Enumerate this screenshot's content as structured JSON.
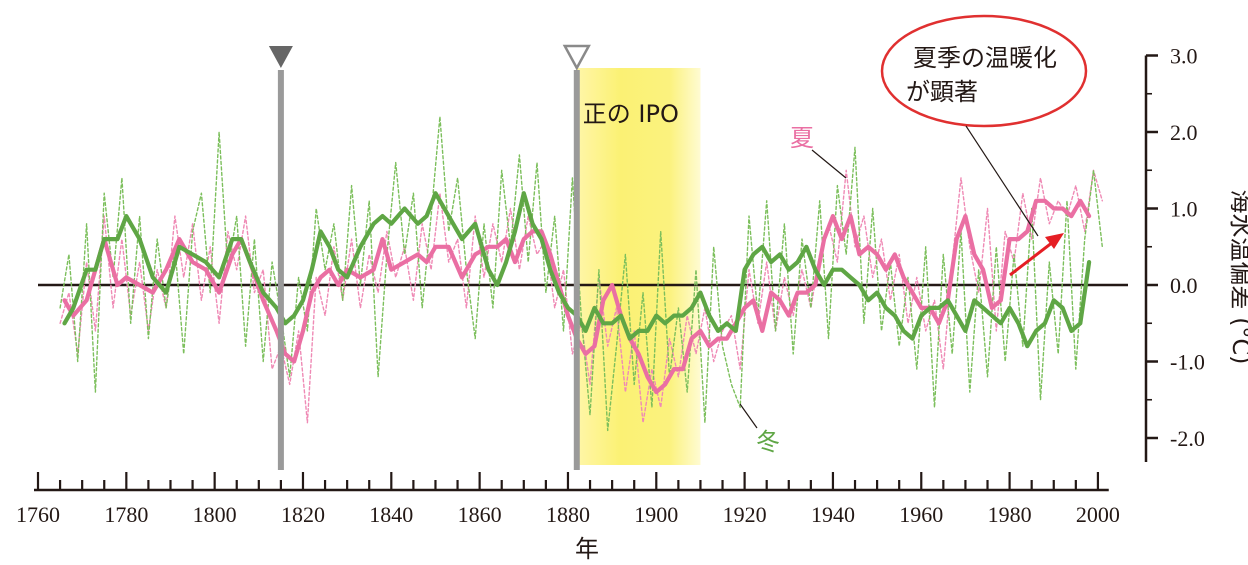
{
  "chart_data": {
    "type": "line",
    "title": "",
    "xlabel": "年",
    "ylabel": "海水温偏差 (°C)",
    "xlim": [
      1760,
      2005
    ],
    "ylim": [
      -2.3,
      3.0
    ],
    "x_ticks": [
      1760,
      1780,
      1800,
      1820,
      1840,
      1860,
      1880,
      1900,
      1920,
      1940,
      1960,
      1980,
      2000
    ],
    "y_ticks": [
      {
        "value": 3.0,
        "label": "3.0"
      },
      {
        "value": 2.0,
        "label": "2.0"
      },
      {
        "value": 1.0,
        "label": "1.0"
      },
      {
        "value": 0.0,
        "label": "0.0"
      },
      {
        "value": -1.0,
        "label": "-1.0"
      },
      {
        "value": -2.0,
        "label": "-2.0"
      }
    ],
    "markers": [
      {
        "x": 1815,
        "style": "filled-triangle"
      },
      {
        "x": 1882,
        "style": "open-triangle"
      }
    ],
    "shaded_period": {
      "label": "正の IPO",
      "x_start": 1882,
      "x_end": 1910
    },
    "annotations": {
      "summer": "夏",
      "winter": "冬",
      "callout_line1": "夏季の温暖化",
      "callout_line2": "が顕著"
    },
    "series": [
      {
        "name": "夏",
        "style": "smoothed",
        "color": "#ea6fa3",
        "x": [
          1766,
          1768,
          1771,
          1773,
          1775,
          1778,
          1780,
          1783,
          1786,
          1789,
          1792,
          1795,
          1798,
          1801,
          1804,
          1806,
          1808,
          1811,
          1814,
          1816,
          1818,
          1820,
          1822,
          1824,
          1826,
          1828,
          1830,
          1833,
          1836,
          1838,
          1840,
          1843,
          1846,
          1848,
          1850,
          1853,
          1856,
          1859,
          1862,
          1864,
          1866,
          1868,
          1870,
          1872,
          1874,
          1876,
          1878,
          1880,
          1882,
          1884,
          1886,
          1888,
          1890,
          1892,
          1894,
          1896,
          1898,
          1900,
          1902,
          1904,
          1906,
          1908,
          1910,
          1912,
          1914,
          1916,
          1918,
          1920,
          1922,
          1924,
          1926,
          1928,
          1930,
          1932,
          1934,
          1936,
          1938,
          1940,
          1942,
          1944,
          1946,
          1948,
          1950,
          1952,
          1954,
          1956,
          1958,
          1960,
          1962,
          1964,
          1966,
          1968,
          1970,
          1972,
          1974,
          1976,
          1978,
          1980,
          1982,
          1984,
          1986,
          1988,
          1990,
          1992,
          1994,
          1996,
          1998
        ],
        "y": [
          -0.2,
          -0.4,
          -0.2,
          0.2,
          0.6,
          0.0,
          0.1,
          0.0,
          -0.1,
          0.2,
          0.6,
          0.3,
          0.2,
          -0.1,
          0.4,
          0.6,
          0.3,
          -0.2,
          -0.6,
          -0.9,
          -1.0,
          -0.6,
          -0.1,
          0.1,
          0.2,
          0.0,
          0.2,
          0.1,
          0.2,
          0.6,
          0.2,
          0.3,
          0.4,
          0.3,
          0.5,
          0.5,
          0.1,
          0.4,
          0.5,
          0.5,
          0.6,
          0.3,
          0.6,
          0.7,
          0.7,
          0.4,
          0.0,
          -0.4,
          -0.7,
          -0.9,
          -0.8,
          -0.2,
          0.0,
          -0.4,
          -0.7,
          -0.9,
          -1.2,
          -1.4,
          -1.3,
          -1.1,
          -1.1,
          -0.7,
          -0.6,
          -0.8,
          -0.7,
          -0.7,
          -0.5,
          -0.3,
          -0.2,
          -0.6,
          -0.1,
          -0.2,
          -0.4,
          -0.1,
          -0.1,
          0.0,
          0.6,
          0.9,
          0.6,
          0.9,
          0.4,
          0.5,
          0.4,
          0.2,
          0.4,
          0.1,
          -0.1,
          -0.3,
          -0.3,
          -0.5,
          -0.2,
          0.6,
          0.9,
          0.4,
          0.2,
          -0.3,
          -0.2,
          0.6,
          0.6,
          0.7,
          1.1,
          1.1,
          1.0,
          1.0,
          0.9,
          1.1,
          0.9
        ]
      },
      {
        "name": "冬",
        "style": "smoothed",
        "color": "#5fa645",
        "x": [
          1766,
          1768,
          1771,
          1773,
          1775,
          1778,
          1780,
          1783,
          1786,
          1789,
          1792,
          1795,
          1798,
          1801,
          1804,
          1806,
          1808,
          1811,
          1814,
          1816,
          1818,
          1820,
          1822,
          1824,
          1826,
          1828,
          1830,
          1833,
          1836,
          1838,
          1840,
          1843,
          1846,
          1848,
          1850,
          1853,
          1856,
          1859,
          1862,
          1864,
          1866,
          1868,
          1870,
          1872,
          1874,
          1876,
          1878,
          1880,
          1882,
          1884,
          1886,
          1888,
          1890,
          1892,
          1894,
          1896,
          1898,
          1900,
          1902,
          1904,
          1906,
          1908,
          1910,
          1912,
          1914,
          1916,
          1918,
          1920,
          1922,
          1924,
          1926,
          1928,
          1930,
          1932,
          1934,
          1936,
          1938,
          1940,
          1942,
          1944,
          1946,
          1948,
          1950,
          1952,
          1954,
          1956,
          1958,
          1960,
          1962,
          1964,
          1966,
          1968,
          1970,
          1972,
          1974,
          1976,
          1978,
          1980,
          1982,
          1984,
          1986,
          1988,
          1990,
          1992,
          1994,
          1996,
          1998
        ],
        "y": [
          -0.5,
          -0.3,
          0.2,
          0.2,
          0.6,
          0.6,
          0.9,
          0.6,
          0.1,
          -0.1,
          0.5,
          0.4,
          0.3,
          0.1,
          0.6,
          0.6,
          0.3,
          -0.1,
          -0.3,
          -0.5,
          -0.4,
          -0.2,
          0.2,
          0.7,
          0.5,
          0.2,
          0.1,
          0.5,
          0.8,
          0.9,
          0.8,
          1.0,
          0.8,
          0.9,
          1.2,
          0.9,
          0.6,
          0.8,
          0.2,
          0.0,
          0.3,
          0.7,
          1.2,
          0.8,
          0.6,
          0.2,
          -0.1,
          -0.3,
          -0.4,
          -0.6,
          -0.3,
          -0.5,
          -0.5,
          -0.4,
          -0.7,
          -0.6,
          -0.6,
          -0.4,
          -0.5,
          -0.4,
          -0.4,
          -0.3,
          -0.1,
          -0.4,
          -0.6,
          -0.5,
          -0.6,
          0.2,
          0.4,
          0.5,
          0.3,
          0.4,
          0.2,
          0.3,
          0.5,
          0.2,
          0.0,
          0.2,
          0.2,
          0.1,
          0.0,
          -0.2,
          -0.1,
          -0.3,
          -0.4,
          -0.6,
          -0.7,
          -0.4,
          -0.3,
          -0.3,
          -0.2,
          -0.4,
          -0.6,
          -0.2,
          -0.3,
          -0.4,
          -0.5,
          -0.3,
          -0.5,
          -0.8,
          -0.6,
          -0.5,
          -0.2,
          -0.3,
          -0.6,
          -0.5,
          0.3
        ]
      },
      {
        "name": "夏",
        "style": "annual-dashed",
        "color": "#ef8ab5",
        "x": [
          1765,
          1767,
          1769,
          1771,
          1773,
          1775,
          1777,
          1779,
          1781,
          1783,
          1785,
          1787,
          1789,
          1791,
          1793,
          1795,
          1797,
          1799,
          1801,
          1803,
          1805,
          1807,
          1809,
          1811,
          1813,
          1815,
          1817,
          1819,
          1821,
          1823,
          1825,
          1827,
          1829,
          1831,
          1833,
          1835,
          1837,
          1839,
          1841,
          1843,
          1845,
          1847,
          1849,
          1851,
          1853,
          1855,
          1857,
          1859,
          1861,
          1863,
          1865,
          1867,
          1869,
          1871,
          1873,
          1875,
          1877,
          1879,
          1881,
          1883,
          1885,
          1887,
          1889,
          1891,
          1893,
          1895,
          1897,
          1899,
          1901,
          1903,
          1905,
          1907,
          1909,
          1911,
          1913,
          1915,
          1917,
          1919,
          1921,
          1923,
          1925,
          1927,
          1929,
          1931,
          1933,
          1935,
          1937,
          1939,
          1941,
          1943,
          1945,
          1947,
          1949,
          1951,
          1953,
          1955,
          1957,
          1959,
          1961,
          1963,
          1965,
          1967,
          1969,
          1971,
          1973,
          1975,
          1977,
          1979,
          1981,
          1983,
          1985,
          1987,
          1989,
          1991,
          1993,
          1995,
          1997,
          1999,
          2001
        ],
        "y": [
          -0.5,
          -0.1,
          -0.9,
          0.3,
          -0.6,
          0.9,
          -0.3,
          0.6,
          -0.4,
          0.3,
          -0.6,
          0.2,
          -0.3,
          0.9,
          0.1,
          0.8,
          -0.2,
          0.5,
          -0.5,
          0.7,
          0.2,
          0.9,
          -0.1,
          0.2,
          -1.1,
          -0.8,
          -1.3,
          -0.6,
          -1.8,
          0.1,
          -0.4,
          0.5,
          -0.2,
          0.6,
          -0.3,
          0.4,
          -0.1,
          0.7,
          0.1,
          0.5,
          -0.2,
          0.8,
          0.2,
          1.2,
          0.3,
          0.6,
          -0.3,
          0.9,
          0.1,
          0.8,
          0.3,
          1.0,
          0.2,
          0.9,
          0.4,
          0.6,
          -0.3,
          0.2,
          -0.9,
          -0.5,
          -1.3,
          0.1,
          -0.8,
          -0.3,
          -1.4,
          -0.6,
          -1.8,
          -1.1,
          -1.6,
          -0.7,
          -1.2,
          -0.4,
          -0.9,
          -0.3,
          -1.0,
          -0.6,
          -0.4,
          -1.1,
          0.2,
          -0.5,
          0.3,
          -0.6,
          0.1,
          -0.4,
          0.2,
          -0.3,
          0.4,
          0.8,
          0.3,
          1.5,
          0.5,
          0.9,
          0.1,
          0.6,
          -0.2,
          0.4,
          -0.5,
          0.1,
          -0.6,
          -0.2,
          -1.1,
          0.3,
          1.4,
          0.5,
          -0.1,
          1.0,
          -0.6,
          0.7,
          0.3,
          1.2,
          0.6,
          1.4,
          0.8,
          1.1,
          0.9,
          1.3,
          0.7,
          1.5,
          1.1
        ]
      },
      {
        "name": "冬",
        "style": "annual-dashed",
        "color": "#7cbf5c",
        "x": [
          1765,
          1767,
          1769,
          1771,
          1773,
          1775,
          1777,
          1779,
          1781,
          1783,
          1785,
          1787,
          1789,
          1791,
          1793,
          1795,
          1797,
          1799,
          1801,
          1803,
          1805,
          1807,
          1809,
          1811,
          1813,
          1815,
          1817,
          1819,
          1821,
          1823,
          1825,
          1827,
          1829,
          1831,
          1833,
          1835,
          1837,
          1839,
          1841,
          1843,
          1845,
          1847,
          1849,
          1851,
          1853,
          1855,
          1857,
          1859,
          1861,
          1863,
          1865,
          1867,
          1869,
          1871,
          1873,
          1875,
          1877,
          1879,
          1881,
          1883,
          1885,
          1887,
          1889,
          1891,
          1893,
          1895,
          1897,
          1899,
          1901,
          1903,
          1905,
          1907,
          1909,
          1911,
          1913,
          1915,
          1917,
          1919,
          1921,
          1923,
          1925,
          1927,
          1929,
          1931,
          1933,
          1935,
          1937,
          1939,
          1941,
          1943,
          1945,
          1947,
          1949,
          1951,
          1953,
          1955,
          1957,
          1959,
          1961,
          1963,
          1965,
          1967,
          1969,
          1971,
          1973,
          1975,
          1977,
          1979,
          1981,
          1983,
          1985,
          1987,
          1989,
          1991,
          1993,
          1995,
          1997,
          1999,
          2001
        ],
        "y": [
          -0.3,
          0.4,
          -1.0,
          0.8,
          -1.4,
          1.2,
          0.1,
          1.4,
          -0.5,
          0.9,
          -0.7,
          0.6,
          -0.3,
          0.5,
          -0.9,
          0.7,
          1.2,
          -0.1,
          2.0,
          0.2,
          0.9,
          -0.8,
          0.6,
          -1.0,
          0.3,
          -0.4,
          -1.2,
          0.1,
          -0.6,
          1.0,
          0.2,
          0.8,
          -0.2,
          1.3,
          0.0,
          1.1,
          -1.2,
          0.4,
          1.6,
          0.4,
          1.2,
          -0.3,
          0.9,
          2.2,
          0.7,
          1.4,
          0.2,
          -0.7,
          0.8,
          -0.3,
          1.5,
          0.5,
          1.7,
          0.3,
          1.6,
          -0.1,
          0.9,
          -0.6,
          1.4,
          -0.4,
          -1.7,
          0.2,
          -1.9,
          -0.8,
          0.4,
          -1.3,
          -0.1,
          -1.6,
          0.7,
          -1.2,
          -0.3,
          -1.4,
          0.2,
          -1.8,
          0.5,
          -0.8,
          -1.3,
          -1.6,
          0.9,
          -0.4,
          1.1,
          -0.6,
          0.8,
          -0.9,
          0.6,
          -0.3,
          1.1,
          -0.7,
          1.3,
          0.4,
          1.8,
          -0.5,
          1.0,
          -0.6,
          0.3,
          -0.8,
          0.1,
          -1.1,
          0.5,
          -1.6,
          0.4,
          -0.9,
          0.7,
          -1.4,
          0.2,
          -1.2,
          0.5,
          -1.0,
          0.4,
          -0.8,
          1.0,
          -1.5,
          0.3,
          -0.9,
          1.1,
          -1.1,
          0.6,
          1.5,
          0.5
        ]
      }
    ]
  }
}
